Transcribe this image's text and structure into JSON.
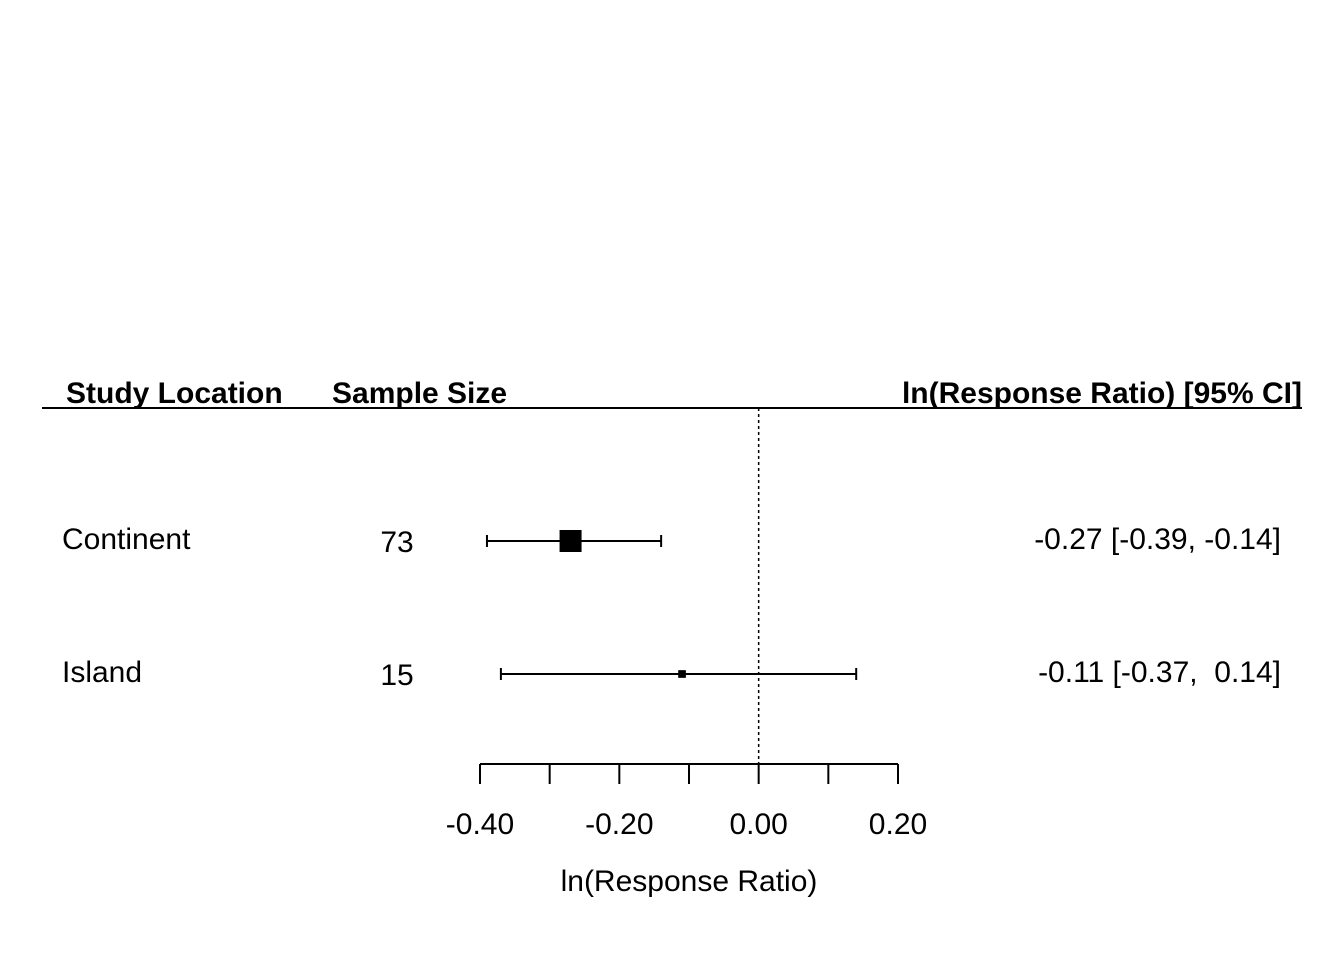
{
  "chart_data": {
    "type": "forest",
    "headers": [
      "Study Location",
      "Sample Size",
      "ln(Response Ratio) [95% CI]"
    ],
    "categories": [
      "Continent",
      "Island"
    ],
    "sample_sizes": [
      73,
      15
    ],
    "values": [
      -0.27,
      -0.11
    ],
    "ci_lower": [
      -0.39,
      -0.37
    ],
    "ci_upper": [
      -0.14,
      0.14
    ],
    "value_labels": [
      "-0.27 [-0.39, -0.14]",
      "-0.11 [-0.37,  0.14]"
    ],
    "color": "#000000",
    "xlabel": "ln(Response Ratio)",
    "xlim": [
      -0.4,
      0.2
    ],
    "xticks": [
      {
        "value": -0.4,
        "label": "-0.40"
      },
      {
        "value": -0.3,
        "label": null
      },
      {
        "value": -0.2,
        "label": "-0.20"
      },
      {
        "value": -0.1,
        "label": null
      },
      {
        "value": 0,
        "label": "0.00"
      },
      {
        "value": 0.1,
        "label": null
      },
      {
        "value": 0.2,
        "label": "0.20"
      }
    ],
    "reference_line": 0
  }
}
